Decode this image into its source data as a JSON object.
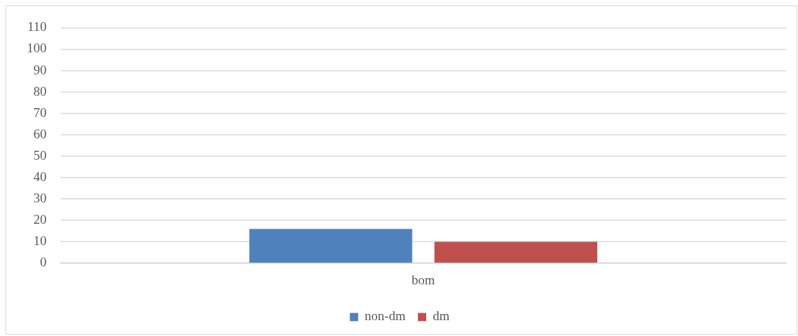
{
  "chart_data": {
    "type": "bar",
    "categories": [
      "bom"
    ],
    "series": [
      {
        "name": "non-dm",
        "color": "#4f81bd",
        "values": [
          16
        ]
      },
      {
        "name": "dm",
        "color": "#c0504d",
        "values": [
          10
        ]
      }
    ],
    "ylim": [
      0,
      110
    ],
    "yticks": [
      0,
      10,
      20,
      30,
      40,
      50,
      60,
      70,
      80,
      90,
      100,
      110
    ],
    "grid": "y",
    "legend": "bottom"
  }
}
